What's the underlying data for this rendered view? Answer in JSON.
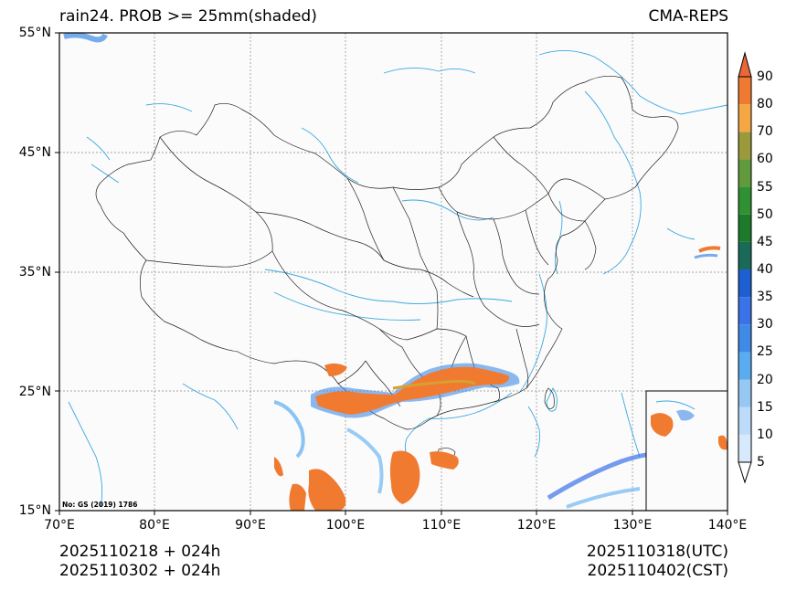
{
  "header": {
    "left_title": "rain24. PROB >= 25mm(shaded)",
    "right_title": "CMA-REPS"
  },
  "map": {
    "lat_ticks": [
      "55°N",
      "45°N",
      "35°N",
      "25°N",
      "15°N"
    ],
    "lon_ticks": [
      "70°E",
      "80°E",
      "90°E",
      "100°E",
      "110°E",
      "120°E",
      "130°E",
      "140°E"
    ],
    "extent": {
      "lon_min": 70,
      "lon_max": 140,
      "lat_min": 15,
      "lat_max": 55
    },
    "credit": "No: GS (2019) 1786"
  },
  "colorbar": {
    "labels": [
      "5",
      "10",
      "15",
      "20",
      "25",
      "30",
      "35",
      "40",
      "45",
      "50",
      "55",
      "60",
      "70",
      "80",
      "90"
    ],
    "colors": [
      "#ffffff",
      "#d7eafd",
      "#bcdcf9",
      "#96c8f3",
      "#5aacf0",
      "#3f8ae6",
      "#3a72e8",
      "#1d5fd0",
      "#1a6a5a",
      "#1d7a2a",
      "#2f9132",
      "#609a3c",
      "#9a9a3a",
      "#f4a742",
      "#f07a30",
      "#e8683a"
    ]
  },
  "footer": {
    "left_line1": "2025110218  +  024h",
    "left_line2": "2025110302  +  024h",
    "right_line1": "2025110318(UTC)",
    "right_line2": "2025110402(CST)"
  }
}
